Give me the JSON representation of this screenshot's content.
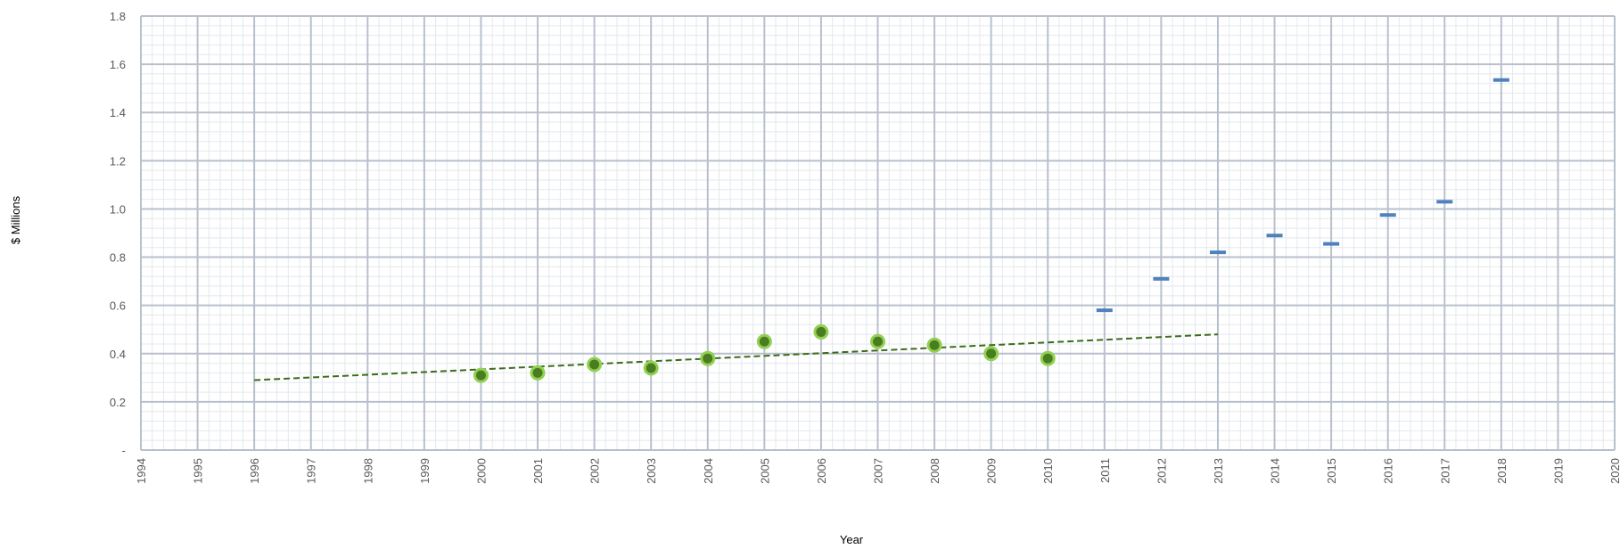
{
  "chart_data": {
    "type": "scatter",
    "title": "",
    "xlabel": "Year",
    "ylabel": "$ Millions",
    "xlim": [
      1994,
      2020
    ],
    "ylim": [
      0,
      1.8
    ],
    "x_ticks": [
      "1994",
      "1995",
      "1996",
      "1997",
      "1998",
      "1999",
      "2000",
      "2001",
      "2002",
      "2003",
      "2004",
      "2005",
      "2006",
      "2007",
      "2008",
      "2009",
      "2010",
      "2011",
      "2012",
      "2013",
      "2014",
      "2015",
      "2016",
      "2017",
      "2018",
      "2019",
      "2020"
    ],
    "y_ticks": [
      "-",
      "0.2",
      "0.4",
      "0.6",
      "0.8",
      "1.0",
      "1.2",
      "1.4",
      "1.6",
      "1.8"
    ],
    "grid": true,
    "legend": "none",
    "series": [
      {
        "marker": "circle",
        "color": "#4a7d22",
        "edge_color": "#92d050",
        "x": [
          2000,
          2001,
          2002,
          2003,
          2004,
          2005,
          2006,
          2007,
          2008,
          2009,
          2010
        ],
        "y": [
          0.31,
          0.32,
          0.355,
          0.34,
          0.38,
          0.45,
          0.49,
          0.45,
          0.435,
          0.4,
          0.38
        ]
      },
      {
        "marker": "dash",
        "color": "#4f81bd",
        "x": [
          2011,
          2012,
          2013,
          2014,
          2015,
          2016,
          2017,
          2018
        ],
        "y": [
          0.58,
          0.71,
          0.82,
          0.89,
          0.855,
          0.975,
          1.03,
          1.535
        ]
      },
      {
        "type": "trendline",
        "style": "dashed",
        "color": "#3d6b1a",
        "x": [
          1996,
          2013
        ],
        "y": [
          0.29,
          0.48
        ]
      }
    ]
  }
}
